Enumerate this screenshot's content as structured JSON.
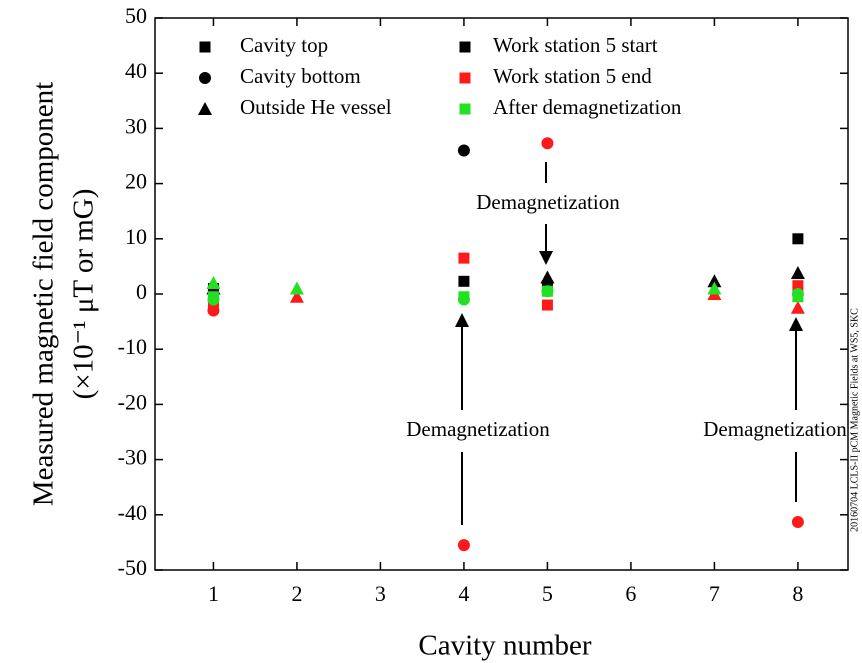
{
  "chart_data": {
    "type": "scatter",
    "x_label": "Cavity number",
    "y_label": [
      "Measured magnetic field component",
      "(×10⁻¹ μT or mG)"
    ],
    "side_note": "20160704 LCLS-II pCM Magnetic Fields at WS5, SKC",
    "annotations": [
      "Demagnetization",
      "Demagnetization",
      "Demagnetization"
    ],
    "xlim": [
      0.3,
      8.6
    ],
    "xticks": [
      1,
      2,
      3,
      4,
      5,
      6,
      7,
      8
    ],
    "ylim": [
      -50,
      50
    ],
    "yticks": [
      -50,
      -40,
      -30,
      -20,
      -10,
      0,
      10,
      20,
      30,
      40,
      50
    ],
    "markers": [
      {
        "name": "Cavity top",
        "shape": "square"
      },
      {
        "name": "Cavity bottom",
        "shape": "circle"
      },
      {
        "name": "Outside He vessel",
        "shape": "triangle"
      }
    ],
    "stages": [
      {
        "name": "Work station 5 start",
        "color": "#000000"
      },
      {
        "name": "Work station 5 end",
        "color": "#ff1a1a"
      },
      {
        "name": "After demagnetization",
        "color": "#22e022"
      }
    ],
    "series": [
      [
        {
          "x": [
            1,
            4,
            5,
            8
          ],
          "y": [
            1,
            2.3,
            1.5,
            10
          ]
        },
        {
          "x": [
            1,
            4,
            5,
            8
          ],
          "y": [
            -2,
            6.5,
            -2,
            1.5
          ]
        },
        {
          "x": [
            1,
            4,
            5,
            8
          ],
          "y": [
            -0.5,
            -0.5,
            0.5,
            -0.5
          ]
        }
      ],
      [
        {
          "x": [
            4
          ],
          "y": [
            26
          ]
        },
        {
          "x": [
            1,
            4,
            5,
            8
          ],
          "y": [
            -3,
            -45.5,
            27.3,
            -41.3
          ]
        },
        {
          "x": [
            1,
            4,
            5,
            8
          ],
          "y": [
            -1,
            -1,
            0.5,
            0
          ]
        }
      ],
      [
        {
          "x": [
            1,
            5,
            7,
            8
          ],
          "y": [
            1,
            3,
            2.3,
            3.8
          ]
        },
        {
          "x": [
            2,
            7,
            8
          ],
          "y": [
            -0.5,
            0,
            -2.5
          ]
        },
        {
          "x": [
            1,
            2,
            7
          ],
          "y": [
            2,
            1,
            1
          ]
        }
      ]
    ]
  }
}
